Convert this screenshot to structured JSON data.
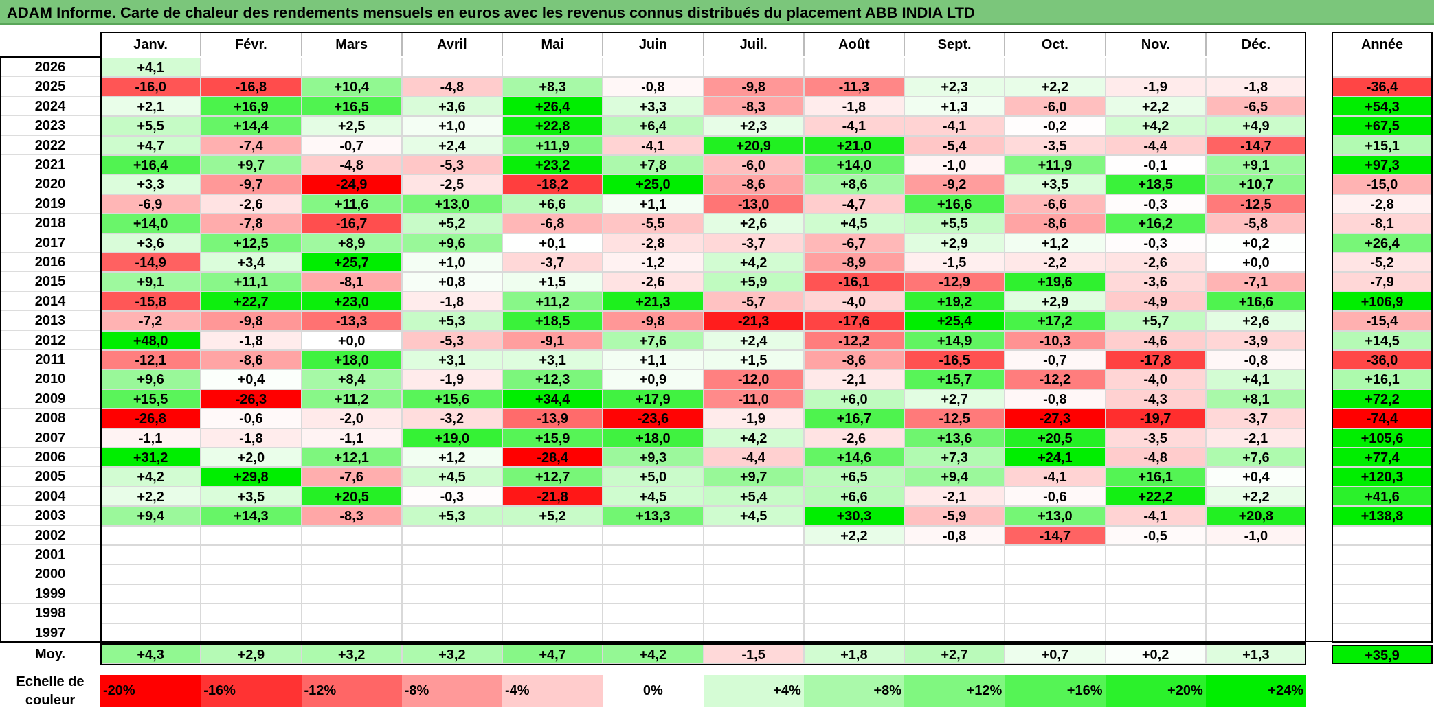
{
  "title": "ADAM Informe. Carte de chaleur des rendements mensuels en euros avec les revenus connus distribués du placement ABB INDIA LTD",
  "chart_data": {
    "type": "heatmap",
    "columns": [
      "Janv.",
      "Févr.",
      "Mars",
      "Avril",
      "Mai",
      "Juin",
      "Juil.",
      "Août",
      "Sept.",
      "Oct.",
      "Nov.",
      "Déc."
    ],
    "year_column_label": "Année",
    "average_row_label": "Moy.",
    "rows": [
      {
        "year": "2026",
        "values": [
          "+4,1",
          "",
          "",
          "",
          "",
          "",
          "",
          "",
          "",
          "",
          "",
          ""
        ],
        "annual": ""
      },
      {
        "year": "2025",
        "values": [
          "-16,0",
          "-16,8",
          "+10,4",
          "-4,8",
          "+8,3",
          "-0,8",
          "-9,8",
          "-11,3",
          "+2,3",
          "+2,2",
          "-1,9",
          "-1,8"
        ],
        "annual": "-36,4"
      },
      {
        "year": "2024",
        "values": [
          "+2,1",
          "+16,9",
          "+16,5",
          "+3,6",
          "+26,4",
          "+3,3",
          "-8,3",
          "-1,8",
          "+1,3",
          "-6,0",
          "+2,2",
          "-6,5"
        ],
        "annual": "+54,3"
      },
      {
        "year": "2023",
        "values": [
          "+5,5",
          "+14,4",
          "+2,5",
          "+1,0",
          "+22,8",
          "+6,4",
          "+2,3",
          "-4,1",
          "-4,1",
          "-0,2",
          "+4,2",
          "+4,9"
        ],
        "annual": "+67,5"
      },
      {
        "year": "2022",
        "values": [
          "+4,7",
          "-7,4",
          "-0,7",
          "+2,4",
          "+11,9",
          "-4,1",
          "+20,9",
          "+21,0",
          "-5,4",
          "-3,5",
          "-4,4",
          "-14,7"
        ],
        "annual": "+15,1"
      },
      {
        "year": "2021",
        "values": [
          "+16,4",
          "+9,7",
          "-4,8",
          "-5,3",
          "+23,2",
          "+7,8",
          "-6,0",
          "+14,0",
          "-1,0",
          "+11,9",
          "-0,1",
          "+9,1"
        ],
        "annual": "+97,3"
      },
      {
        "year": "2020",
        "values": [
          "+3,3",
          "-9,7",
          "-24,9",
          "-2,5",
          "-18,2",
          "+25,0",
          "-8,6",
          "+8,6",
          "-9,2",
          "+3,5",
          "+18,5",
          "+10,7"
        ],
        "annual": "-15,0"
      },
      {
        "year": "2019",
        "values": [
          "-6,9",
          "-2,6",
          "+11,6",
          "+13,0",
          "+6,6",
          "+1,1",
          "-13,0",
          "-4,7",
          "+16,6",
          "-6,6",
          "-0,3",
          "-12,5"
        ],
        "annual": "-2,8"
      },
      {
        "year": "2018",
        "values": [
          "+14,0",
          "-7,8",
          "-16,7",
          "+5,2",
          "-6,8",
          "-5,5",
          "+2,6",
          "+4,5",
          "+5,5",
          "-8,6",
          "+16,2",
          "-5,8"
        ],
        "annual": "-8,1"
      },
      {
        "year": "2017",
        "values": [
          "+3,6",
          "+12,5",
          "+8,9",
          "+9,6",
          "+0,1",
          "-2,8",
          "-3,7",
          "-6,7",
          "+2,9",
          "+1,2",
          "-0,3",
          "+0,2"
        ],
        "annual": "+26,4"
      },
      {
        "year": "2016",
        "values": [
          "-14,9",
          "+3,4",
          "+25,7",
          "+1,0",
          "-3,7",
          "-1,2",
          "+4,2",
          "-8,9",
          "-1,5",
          "-2,2",
          "-2,6",
          "+0,0"
        ],
        "annual": "-5,2"
      },
      {
        "year": "2015",
        "values": [
          "+9,1",
          "+11,1",
          "-8,1",
          "+0,8",
          "+1,5",
          "-2,6",
          "+5,9",
          "-16,1",
          "-12,9",
          "+19,6",
          "-3,6",
          "-7,1"
        ],
        "annual": "-7,9"
      },
      {
        "year": "2014",
        "values": [
          "-15,8",
          "+22,7",
          "+23,0",
          "-1,8",
          "+11,2",
          "+21,3",
          "-5,7",
          "-4,0",
          "+19,2",
          "+2,9",
          "-4,9",
          "+16,6"
        ],
        "annual": "+106,9"
      },
      {
        "year": "2013",
        "values": [
          "-7,2",
          "-9,8",
          "-13,3",
          "+5,3",
          "+18,5",
          "-9,8",
          "-21,3",
          "-17,6",
          "+25,4",
          "+17,2",
          "+5,7",
          "+2,6"
        ],
        "annual": "-15,4"
      },
      {
        "year": "2012",
        "values": [
          "+48,0",
          "-1,8",
          "+0,0",
          "-5,3",
          "-9,1",
          "+7,6",
          "+2,4",
          "-12,2",
          "+14,9",
          "-10,3",
          "-4,6",
          "-3,9"
        ],
        "annual": "+14,5"
      },
      {
        "year": "2011",
        "values": [
          "-12,1",
          "-8,6",
          "+18,0",
          "+3,1",
          "+3,1",
          "+1,1",
          "+1,5",
          "-8,6",
          "-16,5",
          "-0,7",
          "-17,8",
          "-0,8"
        ],
        "annual": "-36,0"
      },
      {
        "year": "2010",
        "values": [
          "+9,6",
          "+0,4",
          "+8,4",
          "-1,9",
          "+12,3",
          "+0,9",
          "-12,0",
          "-2,1",
          "+15,7",
          "-12,2",
          "-4,0",
          "+4,1"
        ],
        "annual": "+16,1"
      },
      {
        "year": "2009",
        "values": [
          "+15,5",
          "-26,3",
          "+11,2",
          "+15,6",
          "+34,4",
          "+17,9",
          "-11,0",
          "+6,0",
          "+2,7",
          "-0,8",
          "-4,3",
          "+8,1"
        ],
        "annual": "+72,2"
      },
      {
        "year": "2008",
        "values": [
          "-26,8",
          "-0,6",
          "-2,0",
          "-3,2",
          "-13,9",
          "-23,6",
          "-1,9",
          "+16,7",
          "-12,5",
          "-27,3",
          "-19,7",
          "-3,7"
        ],
        "annual": "-74,4"
      },
      {
        "year": "2007",
        "values": [
          "-1,1",
          "-1,8",
          "-1,1",
          "+19,0",
          "+15,9",
          "+18,0",
          "+4,2",
          "-2,6",
          "+13,6",
          "+20,5",
          "-3,5",
          "-2,1"
        ],
        "annual": "+105,6"
      },
      {
        "year": "2006",
        "values": [
          "+31,2",
          "+2,0",
          "+12,1",
          "+1,2",
          "-28,4",
          "+9,3",
          "-4,4",
          "+14,6",
          "+7,3",
          "+24,1",
          "-4,8",
          "+7,6"
        ],
        "annual": "+77,4"
      },
      {
        "year": "2005",
        "values": [
          "+4,2",
          "+29,8",
          "-7,6",
          "+4,5",
          "+12,7",
          "+5,0",
          "+9,7",
          "+6,5",
          "+9,4",
          "-4,1",
          "+16,1",
          "+0,4"
        ],
        "annual": "+120,3"
      },
      {
        "year": "2004",
        "values": [
          "+2,2",
          "+3,5",
          "+20,5",
          "-0,3",
          "-21,8",
          "+4,5",
          "+5,4",
          "+6,6",
          "-2,1",
          "-0,6",
          "+22,2",
          "+2,2"
        ],
        "annual": "+41,6"
      },
      {
        "year": "2003",
        "values": [
          "+9,4",
          "+14,3",
          "-8,3",
          "+5,3",
          "+5,2",
          "+13,3",
          "+4,5",
          "+30,3",
          "-5,9",
          "+13,0",
          "-4,1",
          "+20,8"
        ],
        "annual": "+138,8"
      },
      {
        "year": "2002",
        "values": [
          "",
          "",
          "",
          "",
          "",
          "",
          "",
          "+2,2",
          "-0,8",
          "-14,7",
          "-0,5",
          "-1,0"
        ],
        "annual": ""
      },
      {
        "year": "2001",
        "values": [
          "",
          "",
          "",
          "",
          "",
          "",
          "",
          "",
          "",
          "",
          "",
          ""
        ],
        "annual": ""
      },
      {
        "year": "2000",
        "values": [
          "",
          "",
          "",
          "",
          "",
          "",
          "",
          "",
          "",
          "",
          "",
          ""
        ],
        "annual": ""
      },
      {
        "year": "1999",
        "values": [
          "",
          "",
          "",
          "",
          "",
          "",
          "",
          "",
          "",
          "",
          "",
          ""
        ],
        "annual": ""
      },
      {
        "year": "1998",
        "values": [
          "",
          "",
          "",
          "",
          "",
          "",
          "",
          "",
          "",
          "",
          "",
          ""
        ],
        "annual": ""
      },
      {
        "year": "1997",
        "values": [
          "",
          "",
          "",
          "",
          "",
          "",
          "",
          "",
          "",
          "",
          "",
          ""
        ],
        "annual": ""
      }
    ],
    "averages": [
      "+4,3",
      "+2,9",
      "+3,2",
      "+3,2",
      "+4,7",
      "+4,2",
      "-1,5",
      "+1,8",
      "+2,7",
      "+0,7",
      "+0,2",
      "+1,3"
    ],
    "average_annual": "+35,9",
    "color_scale": {
      "label": "Echelle de couleur",
      "entries": [
        "-20%",
        "-16%",
        "-12%",
        "-8%",
        "-4%",
        "0%",
        "+4%",
        "+8%",
        "+12%",
        "+16%",
        "+20%",
        "+24%"
      ],
      "values": [
        -20,
        -16,
        -12,
        -8,
        -4,
        0,
        4,
        8,
        12,
        16,
        20,
        24
      ]
    },
    "colors": {
      "negative_strong": "#ff0000",
      "neutral": "#ffffff",
      "positive_strong": "#00ee00",
      "title_bar": "#7bc67b"
    }
  }
}
